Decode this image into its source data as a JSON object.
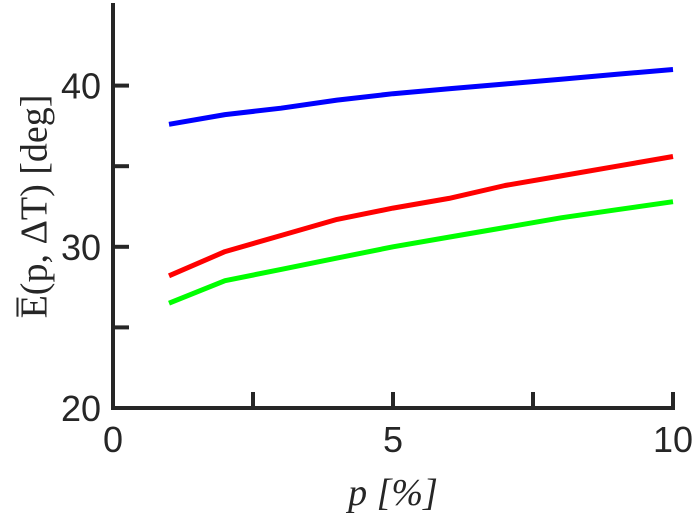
{
  "chart_data": {
    "type": "line",
    "xlabel": "p [%]",
    "ylabel": "E̅(p, ΔT) [deg]",
    "xlim": [
      0,
      10
    ],
    "ylim": [
      20,
      45
    ],
    "x_major_ticks": [
      {
        "value": 0,
        "label": "0"
      },
      {
        "value": 5,
        "label": "5"
      },
      {
        "value": 10,
        "label": "10"
      }
    ],
    "x_minor_ticks": [
      2.5,
      7.5
    ],
    "y_major_ticks": [
      {
        "value": 20,
        "label": "20"
      },
      {
        "value": 30,
        "label": "30"
      },
      {
        "value": 40,
        "label": "40"
      }
    ],
    "y_minor_ticks": [
      25,
      35
    ],
    "grid": false,
    "box": false,
    "x": [
      1,
      2,
      3,
      4,
      5,
      6,
      7,
      8,
      9,
      10
    ],
    "series": [
      {
        "color": "#0000ff",
        "values": [
          37.6,
          38.2,
          38.6,
          39.1,
          39.5,
          39.8,
          40.1,
          40.4,
          40.7,
          41.0
        ]
      },
      {
        "color": "#ff0000",
        "values": [
          28.2,
          29.7,
          30.7,
          31.7,
          32.4,
          33.0,
          33.8,
          34.4,
          35.0,
          35.6
        ]
      },
      {
        "color": "#00ff00",
        "values": [
          26.5,
          27.9,
          28.6,
          29.3,
          30.0,
          30.6,
          31.2,
          31.8,
          32.3,
          32.8
        ]
      }
    ]
  }
}
